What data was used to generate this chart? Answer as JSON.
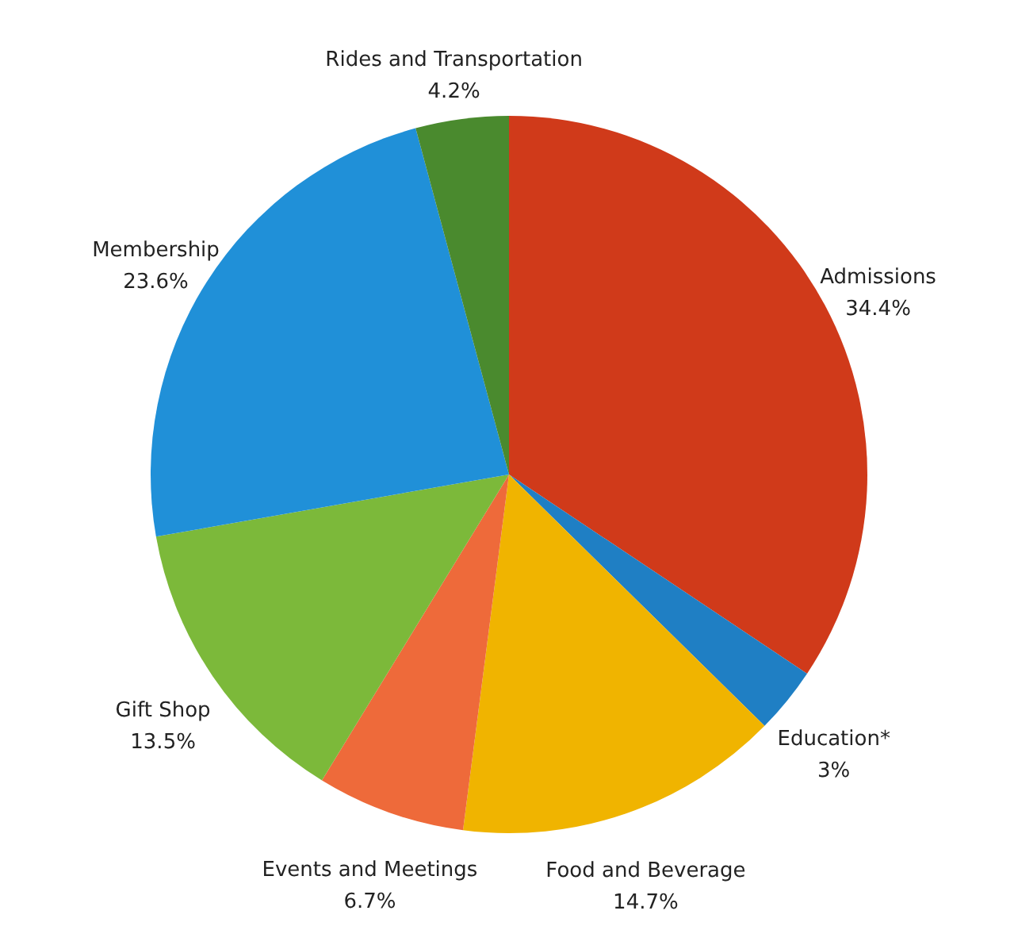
{
  "chart_data": {
    "type": "pie",
    "categories": [
      "Admissions",
      "Education*",
      "Food and Beverage",
      "Events and Meetings",
      "Gift Shop",
      "Membership",
      "Rides and Transportation"
    ],
    "values": [
      34.4,
      3,
      14.7,
      6.7,
      13.5,
      23.6,
      4.2
    ],
    "value_labels": [
      "34.4%",
      "3%",
      "14.7%",
      "6.7%",
      "13.5%",
      "23.6%",
      "4.2%"
    ],
    "colors": [
      "#d03a1a",
      "#1f7fc4",
      "#f0b400",
      "#ee6a3a",
      "#7cb93a",
      "#2090d8",
      "#4a8a2e"
    ]
  }
}
